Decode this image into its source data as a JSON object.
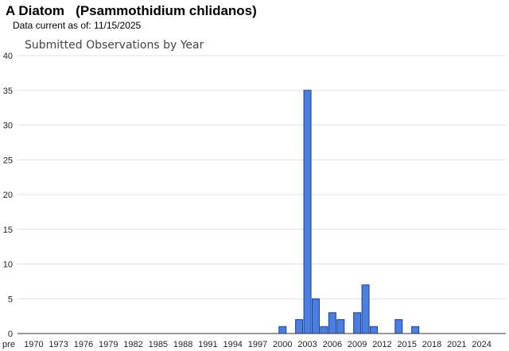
{
  "header": {
    "title": "A Diatom   (Psammothidium chlidanos)",
    "data_current": "Data current as of: 11/15/2025"
  },
  "chart_data": {
    "type": "bar",
    "title": "Submitted Observations by Year",
    "xlabel": "",
    "ylabel": "",
    "ylim": [
      0,
      40
    ],
    "yticks": [
      0,
      5,
      10,
      15,
      20,
      25,
      30,
      35,
      40
    ],
    "grid": true,
    "bar_color": "#4a7fe0",
    "bar_edge_color": "#1a3f9a",
    "categories": [
      "pre",
      "1970",
      "1971",
      "1972",
      "1973",
      "1974",
      "1975",
      "1976",
      "1977",
      "1978",
      "1979",
      "1980",
      "1981",
      "1982",
      "1983",
      "1984",
      "1985",
      "1986",
      "1987",
      "1988",
      "1989",
      "1990",
      "1991",
      "1992",
      "1993",
      "1994",
      "1995",
      "1996",
      "1997",
      "1998",
      "1999",
      "2000",
      "2001",
      "2002",
      "2003",
      "2004",
      "2005",
      "2006",
      "2007",
      "2008",
      "2009",
      "2010",
      "2011",
      "2012",
      "2013",
      "2014",
      "2015",
      "2016",
      "2017",
      "2018",
      "2019",
      "2020",
      "2021",
      "2022",
      "2023",
      "2024",
      "2025"
    ],
    "values": [
      0,
      0,
      0,
      0,
      0,
      0,
      0,
      0,
      0,
      0,
      0,
      0,
      0,
      0,
      0,
      0,
      0,
      0,
      0,
      0,
      0,
      0,
      0,
      0,
      0,
      0,
      0,
      0,
      0,
      0,
      0,
      1,
      0,
      2,
      35,
      5,
      1,
      3,
      2,
      0,
      3,
      7,
      1,
      0,
      0,
      2,
      0,
      1,
      0,
      0,
      0,
      0,
      0,
      0,
      0,
      0,
      0
    ],
    "xtick_labels": [
      "pre",
      "1970",
      "1973",
      "1976",
      "1979",
      "1982",
      "1985",
      "1988",
      "1991",
      "1994",
      "1997",
      "2000",
      "2003",
      "2006",
      "2009",
      "2012",
      "2015",
      "2018",
      "2021",
      "2024"
    ]
  }
}
